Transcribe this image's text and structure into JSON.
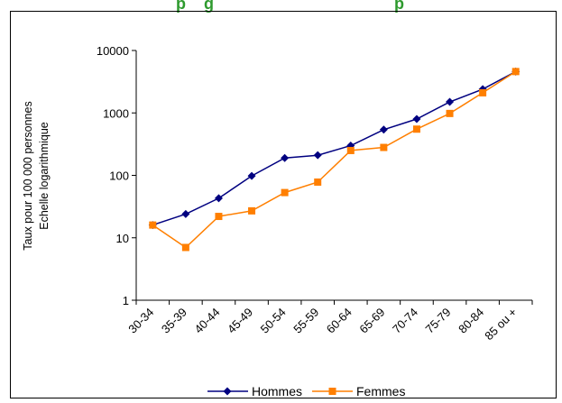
{
  "header": {
    "title": "    p    g                                        p"
  },
  "chart_data": {
    "type": "line",
    "categories": [
      "30-34",
      "35-39",
      "40-44",
      "45-49",
      "50-54",
      "55-59",
      "60-64",
      "65-69",
      "70-74",
      "75-79",
      "80-84",
      "85 ou +"
    ],
    "y_scale": "log",
    "ylim": [
      1,
      10000
    ],
    "yticks": [
      "1",
      "10",
      "100",
      "1000",
      "10000"
    ],
    "ylabel": [
      "Taux pour 100 000 personnes",
      "Echelle logarithmique"
    ],
    "legend_position": "bottom",
    "series": [
      {
        "name": "Hommes",
        "color": "#000080",
        "marker": "diamond",
        "values": [
          16,
          24,
          43,
          98,
          190,
          210,
          300,
          540,
          800,
          1500,
          2400,
          4600
        ]
      },
      {
        "name": "Femmes",
        "color": "#ff7f00",
        "marker": "square",
        "values": [
          16,
          7,
          22,
          27,
          53,
          78,
          250,
          280,
          550,
          980,
          2100,
          4600
        ]
      }
    ]
  }
}
